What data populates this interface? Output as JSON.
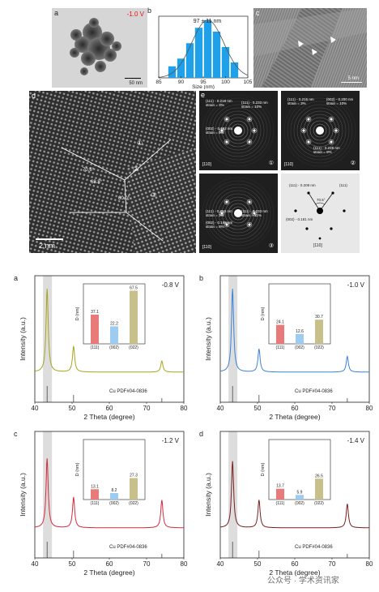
{
  "colors": {
    "xrd_a": "#a7a51d",
    "xrd_b": "#3b82d6",
    "xrd_c": "#d42b3c",
    "xrd_d": "#7a1f20",
    "hist_bar": "#1fa0e8",
    "bar_111": "#e87a7a",
    "bar_002": "#9ecbf0",
    "bar_022": "#c8c08a"
  },
  "top": {
    "labels": {
      "a": "a",
      "b": "b",
      "c": "c",
      "d": "d",
      "e": "e"
    },
    "panel_a": {
      "potential": "-1.0 V",
      "scale": "50 nm"
    },
    "panel_c": {
      "scale": "5 nm"
    },
    "panel_d": {
      "scale": "2 nm",
      "regions": [
        "①",
        "②",
        "③"
      ],
      "angles": [
        "70.6°",
        "68.8°",
        "60.0°"
      ]
    },
    "fft1": {
      "lines": [
        "(111) - 0.218 nm",
        "strain = 3%",
        "(111) - 0.233 nm",
        "strain = 10%",
        "(002) - 0.192 nm",
        "strain = 6%"
      ],
      "zone": "[110]",
      "index": "①"
    },
    "fft2": {
      "lines": [
        "(111) - 0.215 nm",
        "strain = 3%",
        "(002) - 0.200 nm",
        "strain = 10%",
        "(111) - 0.228 nm",
        "strain = 9%"
      ],
      "zone": "[110]",
      "index": "②"
    },
    "fft3": {
      "lines": [
        "(111) - 0.215 nm",
        "strain = 3%",
        "(111) - 0.233 nm",
        "strain = 11%",
        "(002) - 0.195 nm",
        "strain = 8%"
      ],
      "zone": "[110]",
      "index": "③"
    },
    "fft4": {
      "lines": [
        "(111) - 0.209 nm",
        "(111)",
        "70.5°",
        "(002) - 0.181 nm",
        "[110]"
      ]
    }
  },
  "chart_data": [
    {
      "panel": "b-top",
      "type": "bar",
      "title": "97 ± 11 nm",
      "xlabel": "Size (nm)",
      "xlim": [
        85,
        105
      ],
      "xticks": [
        85,
        90,
        95,
        100,
        105
      ],
      "categories": [
        88,
        90,
        92,
        94,
        96,
        98,
        100,
        102
      ],
      "values": [
        3,
        5,
        9,
        13,
        15,
        12,
        8,
        4
      ],
      "fit": "gaussian"
    },
    {
      "panel": "a",
      "type": "line",
      "potential": "-0.8 V",
      "xlabel": "2 Theta (degree)",
      "ylabel": "Intensity (a.u.)",
      "xlim": [
        40,
        80
      ],
      "xticks": [
        40,
        50,
        60,
        70,
        80
      ],
      "peaks": [
        {
          "x": 43.3,
          "h": 0.9
        },
        {
          "x": 50.4,
          "h": 0.28
        },
        {
          "x": 74.1,
          "h": 0.12
        }
      ],
      "reference": "Cu PDF#04-0836",
      "inset": {
        "ylabel": "D (nm)",
        "categories": [
          "(111)",
          "(002)",
          "(022)"
        ],
        "values": [
          37.1,
          22.2,
          67.5
        ],
        "ylim": [
          0,
          70
        ]
      }
    },
    {
      "panel": "b",
      "type": "line",
      "potential": "-1.0 V",
      "xlabel": "2 Theta (degree)",
      "ylabel": "Intensity (a.u.)",
      "xlim": [
        40,
        80
      ],
      "xticks": [
        40,
        50,
        60,
        70,
        80
      ],
      "peaks": [
        {
          "x": 43.3,
          "h": 0.9
        },
        {
          "x": 50.4,
          "h": 0.25
        },
        {
          "x": 74.1,
          "h": 0.17
        }
      ],
      "reference": "Cu PDF#04-0836",
      "inset": {
        "ylabel": "D (nm)",
        "categories": [
          "(111)",
          "(002)",
          "(022)"
        ],
        "values": [
          24.1,
          12.6,
          30.7
        ],
        "ylim": [
          0,
          70
        ]
      }
    },
    {
      "panel": "c",
      "type": "line",
      "potential": "-1.2 V",
      "xlabel": "2 Theta (degree)",
      "ylabel": "Intensity (a.u.)",
      "xlim": [
        40,
        80
      ],
      "xticks": [
        40,
        50,
        60,
        70,
        80
      ],
      "peaks": [
        {
          "x": 43.3,
          "h": 0.75
        },
        {
          "x": 50.4,
          "h": 0.33
        },
        {
          "x": 74.1,
          "h": 0.3
        }
      ],
      "reference": "Cu PDF#04-0836",
      "inset": {
        "ylabel": "D (nm)",
        "categories": [
          "(111)",
          "(002)",
          "(022)"
        ],
        "values": [
          13.1,
          8.2,
          27.3
        ],
        "ylim": [
          0,
          70
        ]
      }
    },
    {
      "panel": "d",
      "type": "line",
      "potential": "-1.4 V",
      "xlabel": "2 Theta (degree)",
      "ylabel": "Intensity (a.u.)",
      "xlim": [
        40,
        80
      ],
      "xticks": [
        40,
        50,
        60,
        70,
        80
      ],
      "peaks": [
        {
          "x": 43.3,
          "h": 0.72
        },
        {
          "x": 50.4,
          "h": 0.3
        },
        {
          "x": 74.1,
          "h": 0.26
        }
      ],
      "reference": "Cu PDF#04-0836",
      "inset": {
        "ylabel": "D (nm)",
        "categories": [
          "(111)",
          "(002)",
          "(022)"
        ],
        "values": [
          13.7,
          5.9,
          26.5
        ],
        "ylim": [
          0,
          70
        ]
      }
    }
  ],
  "watermark": "公众号 · 学术资讯家"
}
